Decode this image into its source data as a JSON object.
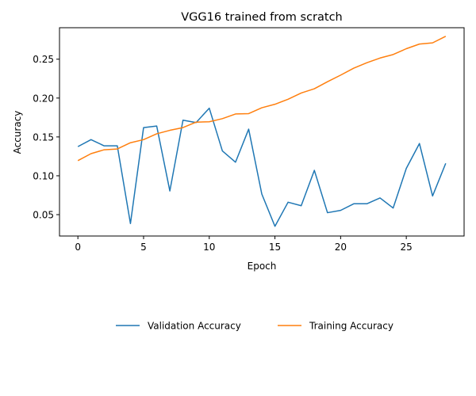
{
  "chart_data": {
    "type": "line",
    "title": "VGG16 trained from scratch",
    "xlabel": "Epoch",
    "ylabel": "Accuracy",
    "xlim": [
      -1.4,
      29.4
    ],
    "ylim": [
      0.0225,
      0.2905
    ],
    "xticks": [
      0,
      5,
      10,
      15,
      20,
      25
    ],
    "xtick_labels": [
      "0",
      "5",
      "10",
      "15",
      "20",
      "25"
    ],
    "yticks": [
      0.05,
      0.1,
      0.15,
      0.2,
      0.25
    ],
    "ytick_labels": [
      "0.05",
      "0.10",
      "0.15",
      "0.20",
      "0.25"
    ],
    "grid": false,
    "legend_position": "bottom-center, below axes",
    "x": [
      0,
      1,
      2,
      3,
      4,
      5,
      6,
      7,
      8,
      9,
      10,
      11,
      12,
      13,
      14,
      15,
      16,
      17,
      18,
      19,
      20,
      21,
      22,
      23,
      24,
      25,
      26,
      27,
      28
    ],
    "series": [
      {
        "name": "Validation Accuracy",
        "color": "#1f77b4",
        "values": [
          0.1375,
          0.1465,
          0.1385,
          0.1385,
          0.0385,
          0.162,
          0.164,
          0.0805,
          0.1715,
          0.1685,
          0.187,
          0.132,
          0.1175,
          0.16,
          0.0765,
          0.035,
          0.066,
          0.0615,
          0.107,
          0.0525,
          0.0555,
          0.064,
          0.064,
          0.0715,
          0.0585,
          0.1095,
          0.1415,
          0.074,
          0.116
        ]
      },
      {
        "name": "Training Accuracy",
        "color": "#ff7f0e",
        "values": [
          0.1195,
          0.1285,
          0.1335,
          0.1345,
          0.1425,
          0.1465,
          0.154,
          0.1585,
          0.162,
          0.169,
          0.1695,
          0.1735,
          0.1795,
          0.18,
          0.1875,
          0.192,
          0.1985,
          0.2065,
          0.212,
          0.221,
          0.2295,
          0.2385,
          0.2455,
          0.2515,
          0.256,
          0.2635,
          0.2695,
          0.271,
          0.2795
        ]
      }
    ]
  }
}
